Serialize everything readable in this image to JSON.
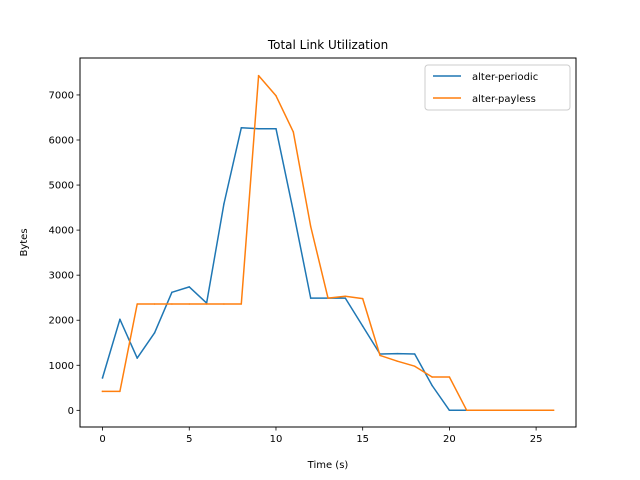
{
  "chart_data": {
    "type": "line",
    "title": "Total Link Utilization",
    "xlabel": "Time (s)",
    "ylabel": "Bytes",
    "xlim": [
      -1.3,
      27.3
    ],
    "ylim": [
      -370,
      7820
    ],
    "xticks": [
      0,
      5,
      10,
      15,
      20,
      25
    ],
    "yticks": [
      0,
      1000,
      2000,
      3000,
      4000,
      5000,
      6000,
      7000
    ],
    "grid": false,
    "legend_position": "upper right",
    "series": [
      {
        "name": "alter-periodic",
        "color": "#1f77b4",
        "x": [
          0,
          1,
          2,
          3,
          4,
          5,
          6,
          7,
          8,
          9,
          10,
          11,
          12,
          13,
          14,
          15,
          16,
          17,
          18,
          19,
          20,
          21,
          22,
          23,
          24,
          25
        ],
        "y": [
          720,
          2020,
          1160,
          1720,
          2620,
          2740,
          2380,
          4580,
          6270,
          6250,
          6250,
          4420,
          2490,
          2490,
          2490,
          1870,
          1250,
          1260,
          1250,
          550,
          0,
          0,
          0,
          0,
          0,
          0
        ]
      },
      {
        "name": "alter-payless",
        "color": "#ff7f0e",
        "x": [
          0,
          1,
          2,
          3,
          4,
          5,
          6,
          7,
          8,
          9,
          10,
          11,
          12,
          13,
          14,
          15,
          16,
          17,
          18,
          19,
          20,
          21,
          22,
          23,
          24,
          25,
          26
        ],
        "y": [
          420,
          420,
          2360,
          2360,
          2360,
          2360,
          2360,
          2360,
          2360,
          7430,
          6980,
          6180,
          4080,
          2490,
          2530,
          2480,
          1220,
          1090,
          980,
          740,
          740,
          0,
          0,
          0,
          0,
          0,
          0
        ]
      }
    ]
  }
}
